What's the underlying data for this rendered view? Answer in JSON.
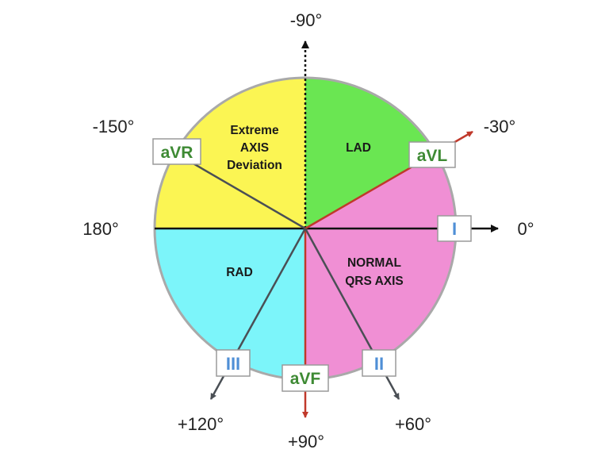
{
  "colors": {
    "extreme": "#fbf553",
    "lad": "#6ae652",
    "normal": "#f08fd4",
    "rad": "#7cf5fa",
    "circle_border": "#a9a9a9",
    "red_axis": "#c0392b",
    "dark_axis": "#4a4f55",
    "lead_green": "#3e8a34",
    "lead_blue": "#4f8fd6"
  },
  "regions": {
    "extreme": [
      "Extreme",
      "AXIS",
      "Deviation"
    ],
    "lad": "LAD",
    "normal": [
      "NORMAL",
      "QRS AXIS"
    ],
    "rad": "RAD"
  },
  "leads": {
    "avr": "aVR",
    "avl": "aVL",
    "i": "I",
    "ii": "II",
    "iii": "III",
    "avf": "aVF"
  },
  "angles": {
    "top": "-90°",
    "upper_left": "-150°",
    "upper_right": "-30°",
    "left": "180°",
    "right": "0°",
    "lower_left": "+120°",
    "lower_right": "+60°",
    "bottom": "+90°"
  }
}
